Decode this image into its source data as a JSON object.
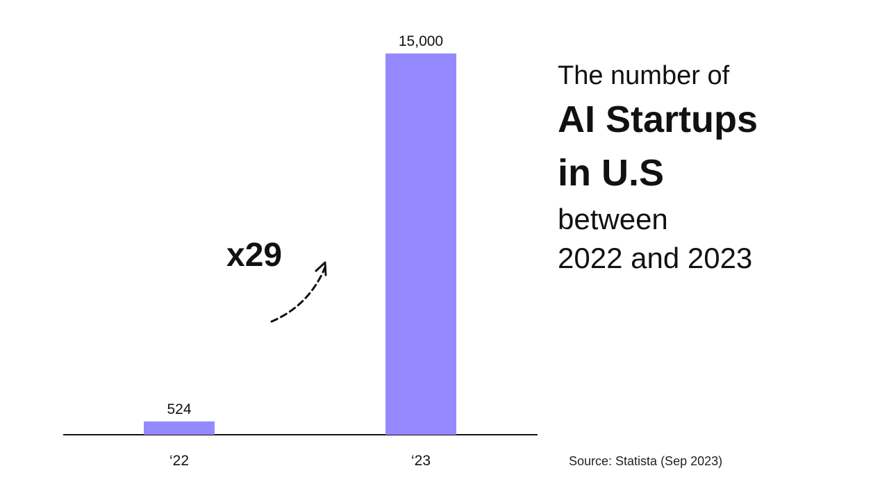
{
  "title": {
    "line1": "The number of",
    "line2": "AI Startups",
    "line3": "in U.S",
    "line4": "between",
    "line5": "2022 and 2023"
  },
  "source": "Source: Statista (Sep 2023)",
  "annotation": "x29",
  "colors": {
    "bar": "#9589FF",
    "axis": "#111111",
    "text": "#111111"
  },
  "chart_data": {
    "type": "bar",
    "categories": [
      "‘22",
      "‘23"
    ],
    "values": [
      524,
      15000
    ],
    "value_labels": [
      "524",
      "15,000"
    ],
    "ylim": [
      0,
      15000
    ],
    "grid": false,
    "xlabel": "",
    "ylabel": ""
  }
}
